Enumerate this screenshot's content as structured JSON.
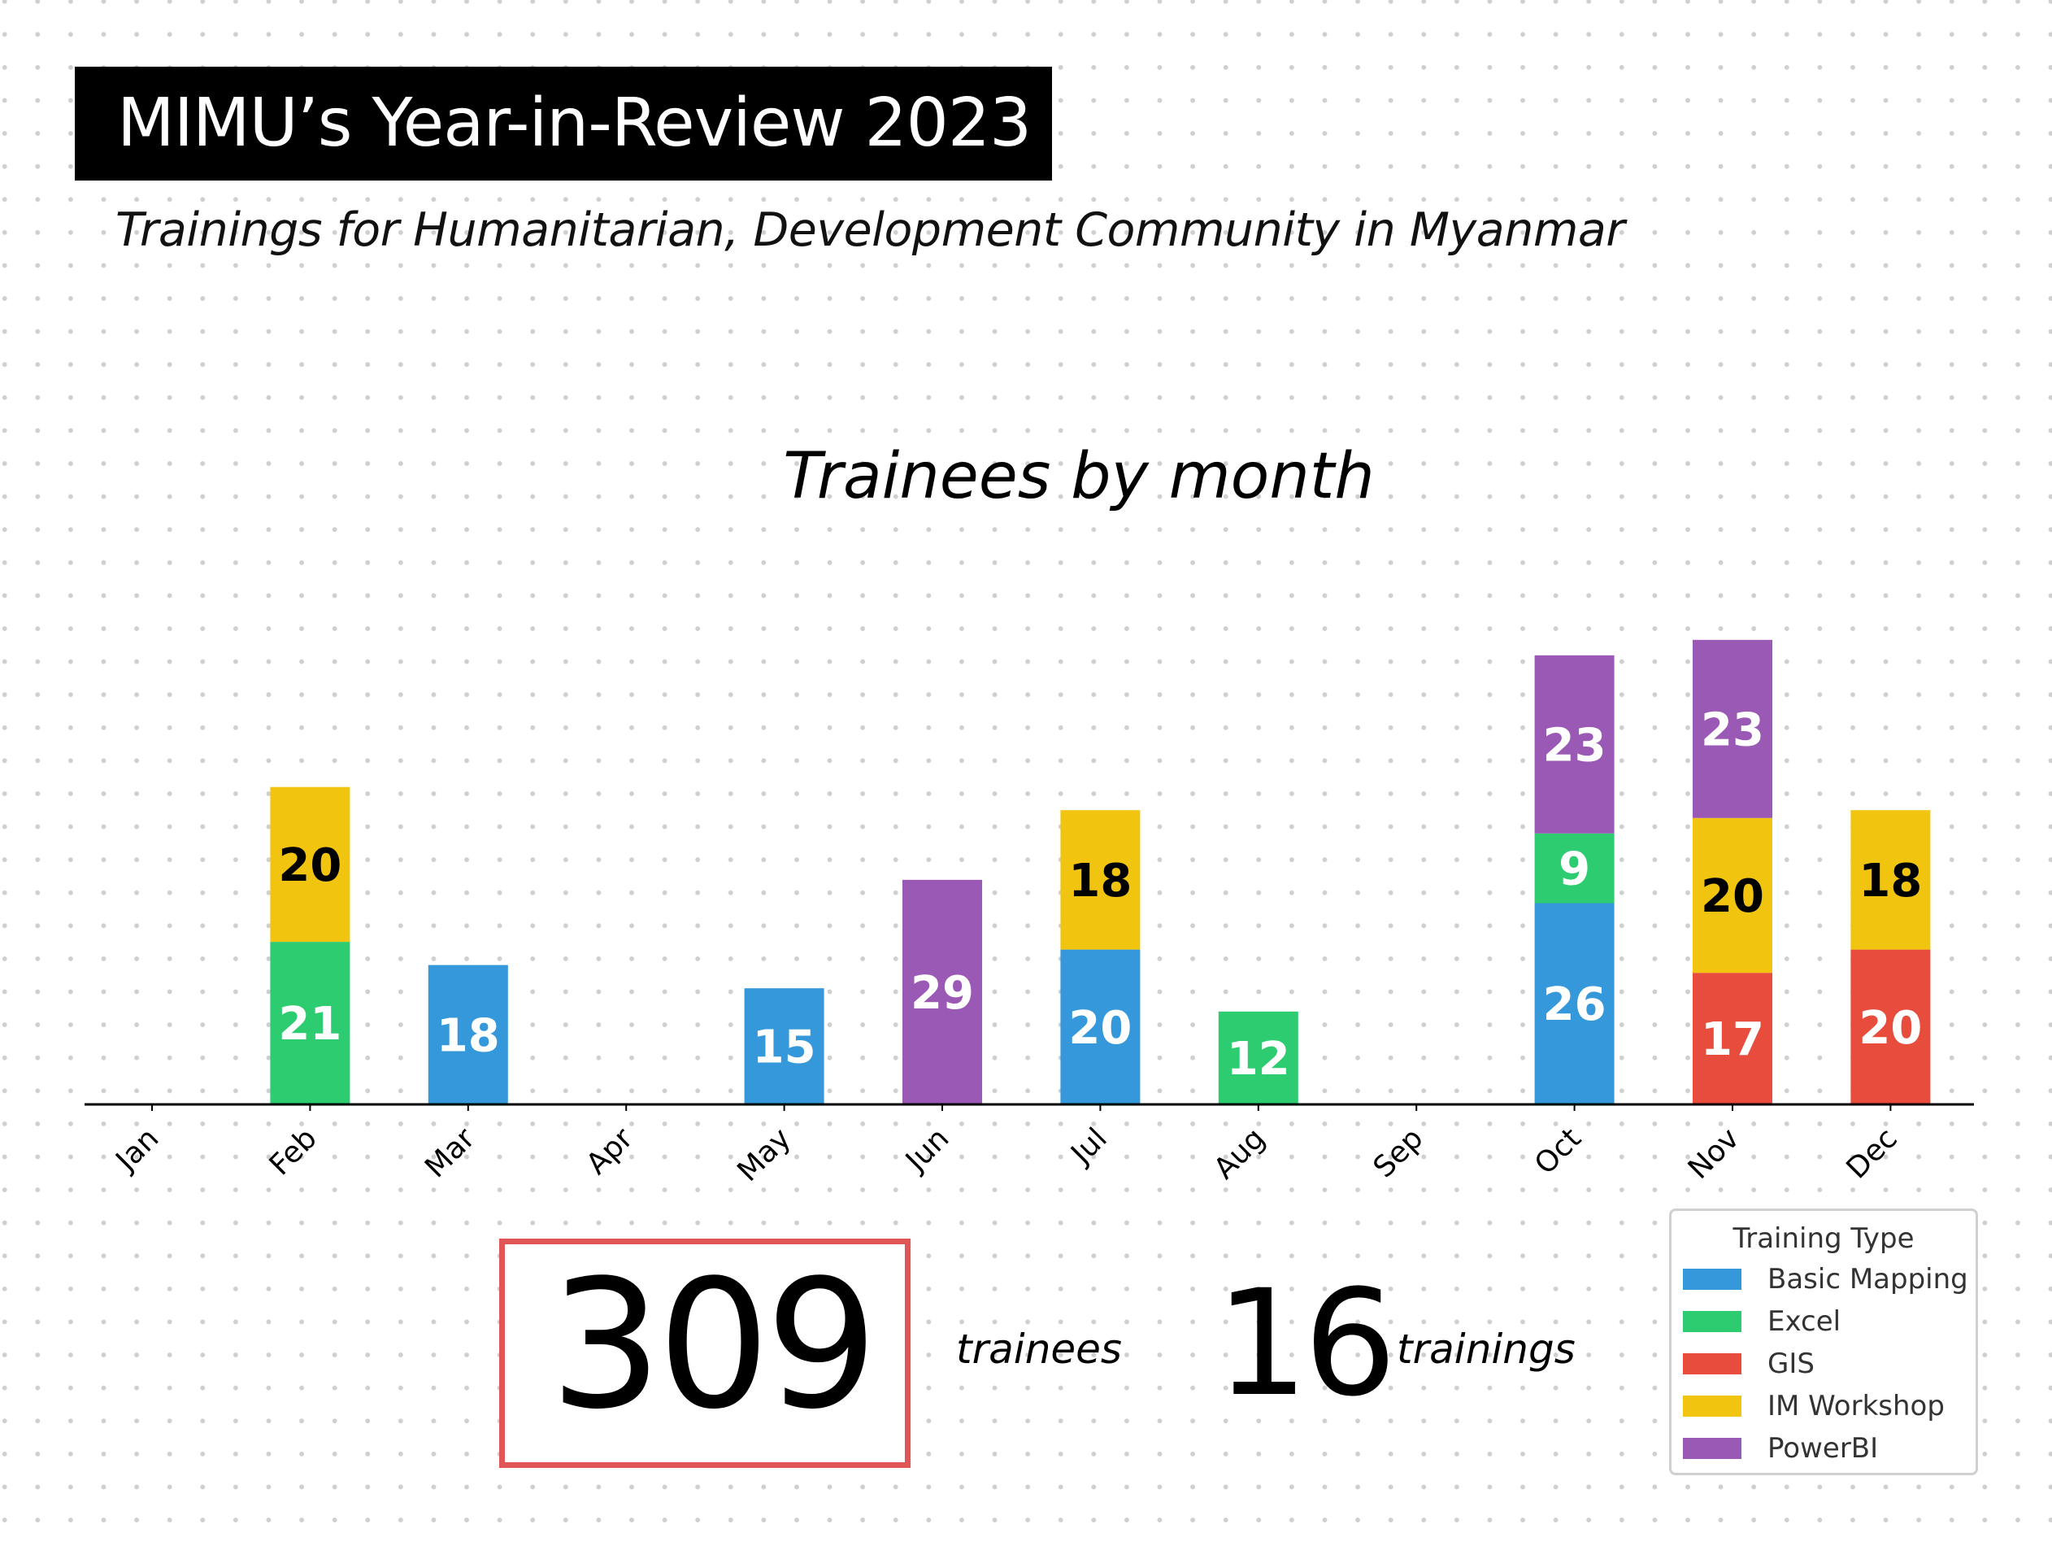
{
  "header": {
    "title": "MIMU’s Year-in-Review 2023",
    "subtitle": "Trainings for Humanitarian, Development Community in Myanmar"
  },
  "stats": {
    "trainees_value": "309",
    "trainees_label": "trainees",
    "trainings_value": "16",
    "trainings_label": "trainings"
  },
  "chart_data": {
    "type": "bar",
    "stacked": true,
    "title": "Trainees by month",
    "xlabel": "",
    "ylabel": "",
    "ylim": [
      0,
      100
    ],
    "grid": false,
    "legend_position": "bottom-right",
    "legend_title": "Training Type",
    "categories": [
      "Jan",
      "Feb",
      "Mar",
      "Apr",
      "May",
      "Jun",
      "Jul",
      "Aug",
      "Sep",
      "Oct",
      "Nov",
      "Dec"
    ],
    "series": [
      {
        "name": "Basic Mapping",
        "color": "#3498db",
        "label_color": "#ffffff",
        "values": [
          0,
          0,
          18,
          0,
          15,
          0,
          20,
          0,
          0,
          26,
          0,
          0
        ]
      },
      {
        "name": "Excel",
        "color": "#2ecc71",
        "label_color": "#ffffff",
        "values": [
          0,
          21,
          0,
          0,
          0,
          0,
          0,
          12,
          0,
          9,
          0,
          0
        ]
      },
      {
        "name": "GIS",
        "color": "#e74c3c",
        "label_color": "#ffffff",
        "values": [
          0,
          0,
          0,
          0,
          0,
          0,
          0,
          0,
          0,
          0,
          17,
          20
        ]
      },
      {
        "name": "IM Workshop",
        "color": "#f1c40f",
        "label_color": "#000000",
        "values": [
          0,
          20,
          0,
          0,
          0,
          0,
          18,
          0,
          0,
          0,
          20,
          18
        ]
      },
      {
        "name": "PowerBI",
        "color": "#9b59b6",
        "label_color": "#ffffff",
        "values": [
          0,
          0,
          0,
          0,
          0,
          29,
          0,
          0,
          0,
          23,
          23,
          0
        ]
      }
    ]
  }
}
